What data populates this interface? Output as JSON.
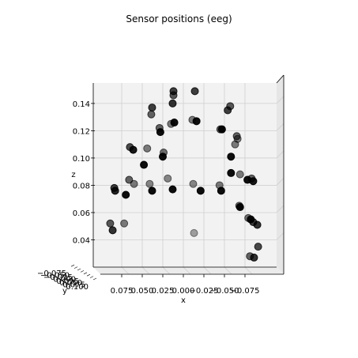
{
  "chart_data": {
    "type": "scatter",
    "projection": "3d",
    "title": "Sensor positions (eeg)",
    "xlabel": "x",
    "ylabel": "y",
    "zlabel": "z",
    "x_ticks": [
      0.075,
      0.05,
      0.025,
      0.0,
      -0.025,
      -0.05,
      -0.075
    ],
    "x_tick_labels": [
      "0.075",
      "0.050",
      "0.025",
      "0.000",
      "−0.025",
      "−0.050",
      "−0.075"
    ],
    "z_ticks": [
      0.04,
      0.06,
      0.08,
      0.1,
      0.12,
      0.14
    ],
    "z_tick_labels": [
      "0.04",
      "0.06",
      "0.08",
      "0.10",
      "0.12",
      "0.14"
    ],
    "y_tick_labels": [
      "0.100",
      "0.075",
      "0.050",
      "0.025",
      "0.000",
      "−0.025",
      "−0.050",
      "−0.075"
    ],
    "xlim": [
      0.1,
      -0.1
    ],
    "zlim": [
      0.02,
      0.155
    ],
    "grid": true,
    "marker_color": "#000000",
    "pane_color": "#f2f2f2",
    "points": [
      {
        "x": 0.012,
        "z": 0.149,
        "a": 0.75
      },
      {
        "x": 0.012,
        "z": 0.146,
        "a": 0.65
      },
      {
        "x": -0.014,
        "z": 0.149,
        "a": 0.75
      },
      {
        "x": 0.013,
        "z": 0.14,
        "a": 0.8
      },
      {
        "x": 0.038,
        "z": 0.137,
        "a": 0.75
      },
      {
        "x": 0.039,
        "z": 0.132,
        "a": 0.6
      },
      {
        "x": 0.029,
        "z": 0.122,
        "a": 0.6
      },
      {
        "x": 0.028,
        "z": 0.119,
        "a": 0.95
      },
      {
        "x": 0.015,
        "z": 0.125,
        "a": 0.5
      },
      {
        "x": 0.011,
        "z": 0.126,
        "a": 0.95
      },
      {
        "x": -0.011,
        "z": 0.128,
        "a": 0.5
      },
      {
        "x": -0.016,
        "z": 0.127,
        "a": 0.95
      },
      {
        "x": -0.045,
        "z": 0.121,
        "a": 0.6
      },
      {
        "x": -0.047,
        "z": 0.121,
        "a": 0.95
      },
      {
        "x": -0.054,
        "z": 0.135,
        "a": 0.75
      },
      {
        "x": -0.057,
        "z": 0.138,
        "a": 0.65
      },
      {
        "x": 0.065,
        "z": 0.108,
        "a": 0.7
      },
      {
        "x": 0.061,
        "z": 0.106,
        "a": 0.9
      },
      {
        "x": 0.044,
        "z": 0.107,
        "a": 0.5
      },
      {
        "x": 0.024,
        "z": 0.104,
        "a": 0.55
      },
      {
        "x": 0.025,
        "z": 0.101,
        "a": 0.95
      },
      {
        "x": 0.048,
        "z": 0.095,
        "a": 0.95
      },
      {
        "x": -0.063,
        "z": 0.11,
        "a": 0.5
      },
      {
        "x": -0.065,
        "z": 0.116,
        "a": 0.6
      },
      {
        "x": -0.066,
        "z": 0.114,
        "a": 0.5
      },
      {
        "x": -0.058,
        "z": 0.101,
        "a": 0.95
      },
      {
        "x": 0.084,
        "z": 0.078,
        "a": 0.75
      },
      {
        "x": 0.083,
        "z": 0.076,
        "a": 0.85
      },
      {
        "x": 0.066,
        "z": 0.084,
        "a": 0.6
      },
      {
        "x": 0.06,
        "z": 0.081,
        "a": 0.5
      },
      {
        "x": 0.041,
        "z": 0.081,
        "a": 0.45
      },
      {
        "x": 0.038,
        "z": 0.076,
        "a": 0.95
      },
      {
        "x": 0.019,
        "z": 0.085,
        "a": 0.45
      },
      {
        "x": 0.013,
        "z": 0.077,
        "a": 0.95
      },
      {
        "x": -0.012,
        "z": 0.081,
        "a": 0.45
      },
      {
        "x": -0.021,
        "z": 0.076,
        "a": 0.95
      },
      {
        "x": -0.044,
        "z": 0.08,
        "a": 0.5
      },
      {
        "x": -0.046,
        "z": 0.076,
        "a": 0.95
      },
      {
        "x": -0.058,
        "z": 0.089,
        "a": 0.95
      },
      {
        "x": -0.069,
        "z": 0.088,
        "a": 0.5
      },
      {
        "x": -0.078,
        "z": 0.084,
        "a": 0.95
      },
      {
        "x": -0.083,
        "z": 0.085,
        "a": 0.6
      },
      {
        "x": -0.085,
        "z": 0.083,
        "a": 0.9
      },
      {
        "x": 0.07,
        "z": 0.073,
        "a": 0.95
      },
      {
        "x": -0.068,
        "z": 0.065,
        "a": 0.55
      },
      {
        "x": -0.069,
        "z": 0.064,
        "a": 0.95
      },
      {
        "x": -0.079,
        "z": 0.056,
        "a": 0.55
      },
      {
        "x": -0.082,
        "z": 0.055,
        "a": 0.95
      },
      {
        "x": -0.085,
        "z": 0.053,
        "a": 0.75
      },
      {
        "x": -0.09,
        "z": 0.051,
        "a": 0.8
      },
      {
        "x": 0.089,
        "z": 0.052,
        "a": 0.65
      },
      {
        "x": 0.086,
        "z": 0.047,
        "a": 0.8
      },
      {
        "x": 0.072,
        "z": 0.052,
        "a": 0.5
      },
      {
        "x": -0.013,
        "z": 0.045,
        "a": 0.35
      },
      {
        "x": -0.091,
        "z": 0.035,
        "a": 0.7
      },
      {
        "x": -0.081,
        "z": 0.028,
        "a": 0.6
      },
      {
        "x": -0.086,
        "z": 0.027,
        "a": 0.8
      }
    ]
  }
}
